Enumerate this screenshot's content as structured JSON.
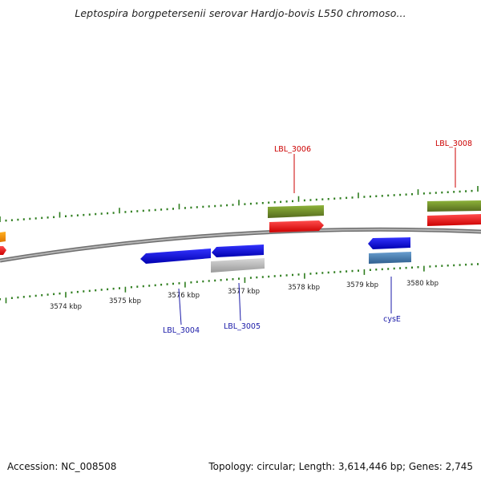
{
  "title": "Leptospira borgpetersenii serovar Hardjo-bovis L550 chromoso...",
  "footer": {
    "accession": "Accession: NC_008508",
    "summary": "Topology: circular; Length: 3,614,446 bp; Genes: 2,745"
  },
  "ruler": {
    "unit": "kbp",
    "labels": [
      "3574 kbp",
      "3575 kbp",
      "3576 kbp",
      "3577 kbp",
      "3578 kbp",
      "3579 kbp",
      "3580 kbp"
    ]
  },
  "genes": [
    {
      "name": "LBL_3004",
      "strand": "minus",
      "color": "#1a1aa8"
    },
    {
      "name": "LBL_3005",
      "strand": "minus",
      "color": "#1a1aa8"
    },
    {
      "name": "LBL_3006",
      "strand": "plus",
      "color": "#cc0000"
    },
    {
      "name": "cysE",
      "strand": "minus",
      "color": "#1a1aa8"
    },
    {
      "name": "LBL_3008",
      "strand": "plus",
      "color": "#cc0000"
    }
  ],
  "colors": {
    "tick": "#2e7d1e",
    "backbone": "#8a8a8a",
    "cds_plus": "#ff1a1a",
    "cds_minus": "#1a1aee",
    "gene_plus": "#6b8e23",
    "gene_minus": "#c0c0c0",
    "gene_minus_alt": "#4682b4",
    "cds_other": "#ff9900"
  }
}
